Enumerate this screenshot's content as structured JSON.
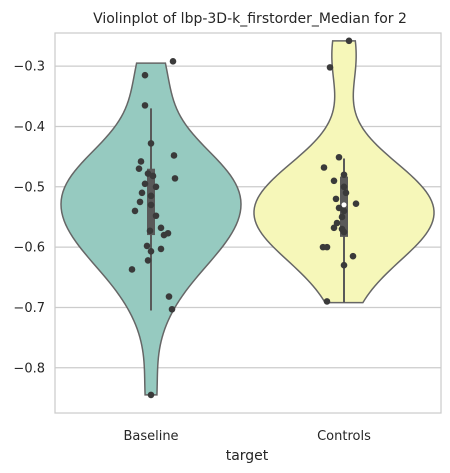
{
  "chart_data": {
    "type": "violin",
    "title": "Violinplot of lbp-3D-k_firstorder_Median for 2",
    "xlabel": "target",
    "ylabel": "",
    "categories": [
      "Baseline",
      "Controls"
    ],
    "ylim": [
      -0.875,
      -0.245
    ],
    "yticks": [
      -0.8,
      -0.7,
      -0.6,
      -0.5,
      -0.4,
      -0.3
    ],
    "ytick_labels": [
      "−0.8",
      "−0.7",
      "−0.6",
      "−0.5",
      "−0.4",
      "−0.3"
    ],
    "grid": true,
    "colors": {
      "Baseline": "#96cac0",
      "Controls": "#f6f7b9",
      "outline": "#666666",
      "points": "#3a3a3a",
      "box": "#595959",
      "grid": "#cccccc",
      "frame": "#cccccc"
    },
    "series": [
      {
        "category": "Baseline",
        "range": [
          -0.845,
          -0.295
        ],
        "quartiles": [
          -0.58,
          -0.515,
          -0.47
        ],
        "whiskers": [
          -0.705,
          -0.37
        ],
        "points": [
          [
            -0.06,
            -0.315
          ],
          [
            0.22,
            -0.292
          ],
          [
            -0.06,
            -0.365
          ],
          [
            0.0,
            -0.428
          ],
          [
            0.23,
            -0.448
          ],
          [
            -0.1,
            -0.458
          ],
          [
            -0.12,
            -0.47
          ],
          [
            -0.03,
            -0.478
          ],
          [
            0.02,
            -0.482
          ],
          [
            0.24,
            -0.486
          ],
          [
            -0.06,
            -0.495
          ],
          [
            0.05,
            -0.5
          ],
          [
            -0.09,
            -0.51
          ],
          [
            0.0,
            -0.515
          ],
          [
            -0.11,
            -0.525
          ],
          [
            0.0,
            -0.53
          ],
          [
            -0.16,
            -0.54
          ],
          [
            0.05,
            -0.548
          ],
          [
            0.1,
            -0.568
          ],
          [
            -0.01,
            -0.573
          ],
          [
            0.17,
            -0.577
          ],
          [
            0.13,
            -0.58
          ],
          [
            -0.04,
            -0.598
          ],
          [
            0.1,
            -0.603
          ],
          [
            0.0,
            -0.607
          ],
          [
            -0.03,
            -0.622
          ],
          [
            -0.19,
            -0.637
          ],
          [
            0.18,
            -0.682
          ],
          [
            0.21,
            -0.703
          ],
          [
            0.0,
            -0.845
          ]
        ]
      },
      {
        "category": "Controls",
        "range": [
          -0.692,
          -0.258
        ],
        "quartiles": [
          -0.583,
          -0.53,
          -0.483
        ],
        "whiskers": [
          -0.692,
          -0.453
        ],
        "points": [
          [
            0.05,
            -0.258
          ],
          [
            -0.14,
            -0.302
          ],
          [
            -0.05,
            -0.451
          ],
          [
            -0.2,
            -0.468
          ],
          [
            0.0,
            -0.48
          ],
          [
            -0.1,
            -0.49
          ],
          [
            0.0,
            -0.5
          ],
          [
            0.02,
            -0.51
          ],
          [
            -0.08,
            -0.52
          ],
          [
            0.12,
            -0.528
          ],
          [
            -0.05,
            -0.535
          ],
          [
            0.0,
            -0.54
          ],
          [
            -0.02,
            -0.55
          ],
          [
            -0.07,
            -0.56
          ],
          [
            -0.1,
            -0.568
          ],
          [
            -0.02,
            -0.57
          ],
          [
            0.0,
            -0.575
          ],
          [
            -0.21,
            -0.6
          ],
          [
            -0.17,
            -0.6
          ],
          [
            0.09,
            -0.615
          ],
          [
            0.0,
            -0.63
          ],
          [
            -0.17,
            -0.69
          ]
        ]
      }
    ]
  }
}
